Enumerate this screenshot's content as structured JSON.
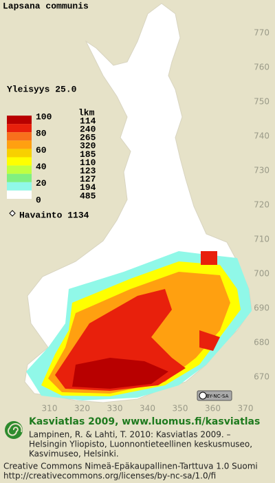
{
  "header": {
    "title": "Lapsana communis",
    "frequency": "Yleisyys  25.0"
  },
  "legend": {
    "count_header": "lkm",
    "scale_labels": [
      "100",
      "80",
      "60",
      "40",
      "20",
      "0"
    ],
    "rows": [
      {
        "color": "#b80000",
        "count": "114"
      },
      {
        "color": "#e8200c",
        "count": "240"
      },
      {
        "color": "#f8701c",
        "count": "265"
      },
      {
        "color": "#ffa010",
        "count": "320"
      },
      {
        "color": "#f8d000",
        "count": "185"
      },
      {
        "color": "#ffff00",
        "count": "110"
      },
      {
        "color": "#c0ff40",
        "count": "123"
      },
      {
        "color": "#80f080",
        "count": "127"
      },
      {
        "color": "#90f8e8",
        "count": "194"
      },
      {
        "color": "#ffffff",
        "count": "485"
      }
    ],
    "observations": "Havainto 1134"
  },
  "grid": {
    "northing_labels": [
      "770",
      "760",
      "750",
      "740",
      "730",
      "720",
      "710",
      "700",
      "690",
      "680",
      "670"
    ],
    "easting_labels": [
      "310",
      "320",
      "330",
      "340",
      "350",
      "360",
      "370"
    ]
  },
  "license_badge": "BY-NC-SA",
  "footer": {
    "heading": "Kasviatlas 2009, www.luomus.fi/kasviatlas",
    "citation": [
      "Lampinen, R. & Lahti, T. 2010: Kasviatlas 2009. –",
      "Helsingin Yliopisto, Luonnontieteellinen keskusmuseo,",
      "Kasvimuseo, Helsinki."
    ],
    "license": [
      "Creative Commons Nimeä-Epäkaupallinen-Tarttuva 1.0 Suomi",
      "http://creativecommons.org/licenses/by-nc-sa/1.0/fi"
    ]
  }
}
